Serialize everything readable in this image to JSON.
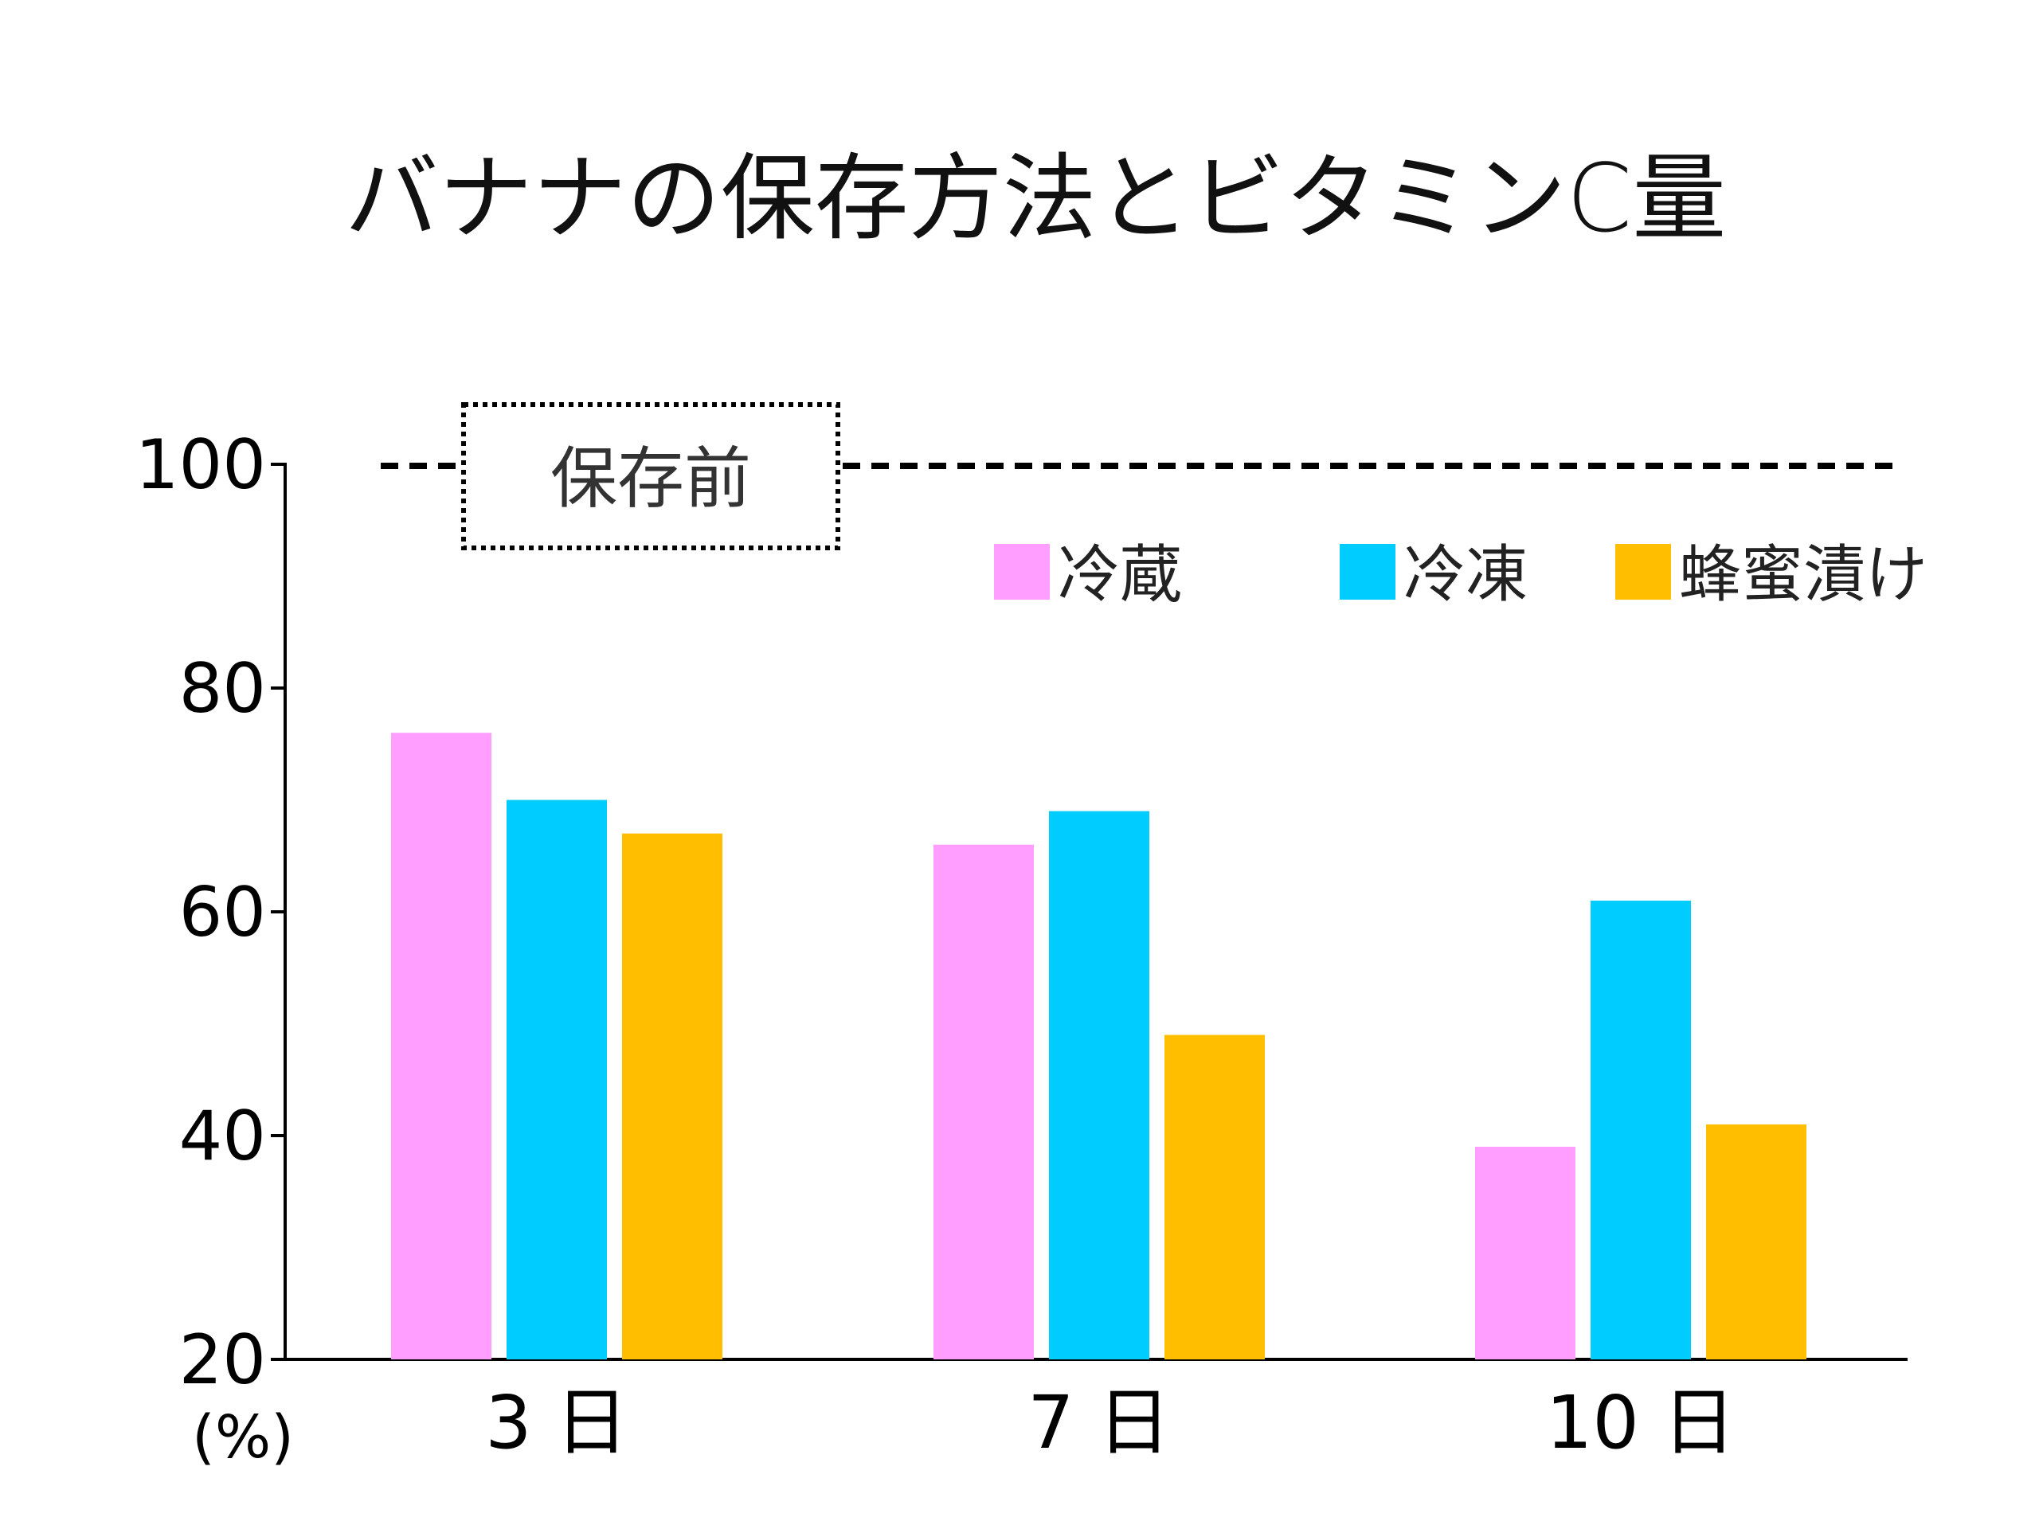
{
  "chart_data": {
    "type": "bar",
    "title": "バナナの保存方法とビタミンC量",
    "categories": [
      "3 日",
      "7 日",
      "10 日"
    ],
    "series": [
      {
        "name": "冷蔵",
        "color": "#FF9EFF",
        "values": [
          76,
          66,
          39
        ]
      },
      {
        "name": "冷凍",
        "color": "#00CCFF",
        "values": [
          70,
          69,
          61
        ]
      },
      {
        "name": "蜂蜜漬け",
        "color": "#FFBE00",
        "values": [
          67,
          49,
          41
        ]
      }
    ],
    "ylim": [
      20,
      100
    ],
    "yticks": [
      20,
      40,
      60,
      80,
      100
    ],
    "ylabel": "(%)",
    "reference_line": {
      "label": "保存前",
      "value": 100,
      "style": "dashed"
    },
    "legend_position": "top-right",
    "grid": false
  }
}
